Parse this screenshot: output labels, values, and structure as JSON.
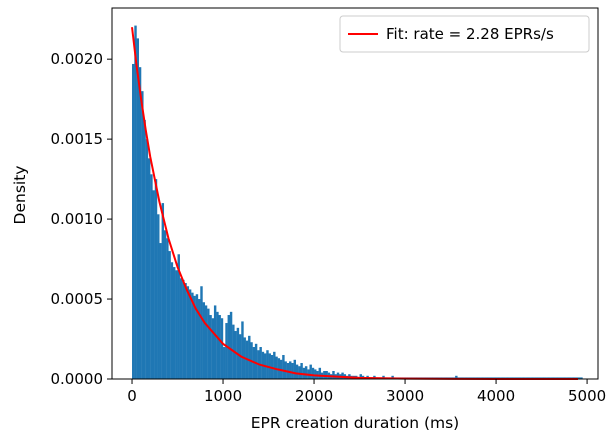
{
  "chart_data": {
    "type": "bar",
    "subtype": "histogram",
    "title": "",
    "xlabel": "EPR creation duration (ms)",
    "ylabel": "Density",
    "xlim": [
      -220,
      5120
    ],
    "ylim": [
      0,
      0.00232
    ],
    "xticks": [
      0,
      1000,
      2000,
      3000,
      4000,
      5000
    ],
    "yticks": [
      0.0,
      0.0005,
      0.001,
      0.0015,
      0.002
    ],
    "xtick_labels": [
      "0",
      "1000",
      "2000",
      "3000",
      "4000",
      "5000"
    ],
    "ytick_labels": [
      "0.0000",
      "0.0005",
      "0.0010",
      "0.0015",
      "0.0020"
    ],
    "bin_width": 25,
    "histogram_values": [
      0.00197,
      0.00221,
      0.00213,
      0.00195,
      0.0018,
      0.00162,
      0.0015,
      0.00138,
      0.00128,
      0.00118,
      0.00125,
      0.00103,
      0.00085,
      0.0011,
      0.00093,
      0.00088,
      0.0008,
      0.00073,
      0.0007,
      0.00068,
      0.00078,
      0.00063,
      0.00062,
      0.0006,
      0.00058,
      0.00056,
      0.00054,
      0.00052,
      0.00053,
      0.0005,
      0.00058,
      0.00048,
      0.00046,
      0.00044,
      0.0004,
      0.00038,
      0.00046,
      0.00042,
      0.0004,
      0.00038,
      0.0002,
      0.00035,
      0.0004,
      0.00042,
      0.00034,
      0.0003,
      0.00032,
      0.00028,
      0.00036,
      0.00026,
      0.00024,
      0.00027,
      0.00023,
      0.0002,
      0.00022,
      0.00018,
      0.0002,
      0.00017,
      0.00016,
      0.00018,
      0.00016,
      0.00015,
      0.00017,
      0.00014,
      0.00013,
      0.00012,
      0.00015,
      0.00011,
      0.0001,
      0.00011,
      0.0001,
      0.00012,
      9e-05,
      8e-05,
      0.0001,
      7e-05,
      8e-05,
      6e-05,
      9e-05,
      7e-05,
      6e-05,
      5e-05,
      7e-05,
      4e-05,
      5e-05,
      5e-05,
      4e-05,
      3e-05,
      5e-05,
      3e-05,
      4e-05,
      3e-05,
      4e-05,
      3e-05,
      2e-05,
      3e-05,
      2e-05,
      2e-05,
      2e-05,
      1e-05,
      3e-05,
      2e-05,
      1e-05,
      2e-05,
      1e-05,
      1e-05,
      2e-05,
      1e-05,
      1e-05,
      1e-05,
      2e-05,
      1e-05,
      1e-05,
      1e-05,
      2e-05,
      1e-05,
      1e-05,
      1e-05,
      1e-05,
      1e-05,
      1e-05,
      1e-05,
      1e-05,
      1e-05,
      1e-05,
      1e-05,
      1e-05,
      1e-05,
      1e-05,
      1e-05,
      1e-05,
      1e-05,
      1e-05,
      1e-05,
      1e-05,
      1e-05,
      1e-05,
      1e-05,
      1e-05,
      1e-05,
      1e-05,
      1e-05,
      2e-05,
      1e-05,
      1e-05,
      1e-05,
      1e-05,
      1e-05,
      1e-05,
      1e-05,
      1e-05,
      1e-05,
      1e-05,
      1e-05,
      1e-05,
      1e-05,
      1e-05,
      1e-05,
      1e-05,
      1e-05,
      1e-05,
      1e-05,
      1e-05,
      1e-05,
      1e-05,
      1e-05,
      1e-05,
      1e-05,
      1e-05,
      1e-05,
      1e-05,
      1e-05,
      1e-05,
      1e-05,
      1e-05,
      1e-05,
      1e-05,
      1e-05,
      1e-05,
      1e-05,
      1e-05,
      1e-05,
      1e-05,
      1e-05,
      1e-05,
      1e-05,
      1e-05,
      1e-05,
      1e-05,
      1e-05,
      1e-05,
      1e-05,
      1e-05,
      1e-05,
      1e-05,
      1e-05,
      1e-05,
      1e-05
    ],
    "fit_line": {
      "name": "Fit: rate = 2.28 EPRs/s",
      "color": "#ff0000",
      "x": [
        0,
        50,
        100,
        150,
        200,
        300,
        400,
        500,
        600,
        700,
        800,
        1000,
        1200,
        1400,
        1600,
        1800,
        2000,
        2500,
        3000,
        3500,
        4000,
        4500,
        4900
      ],
      "y": [
        0.0022,
        0.00196,
        0.00175,
        0.00156,
        0.00139,
        0.00111,
        0.00088,
        0.0007,
        0.00056,
        0.00044,
        0.00035,
        0.00022,
        0.00014,
        9e-05,
        6e-05,
        3.5e-05,
        2.3e-05,
        7e-06,
        2e-06,
        1e-06,
        2e-07,
        1e-07,
        0.0
      ]
    },
    "bar_color": "#1f77b4",
    "legend_position": "top-right",
    "grid": false
  }
}
